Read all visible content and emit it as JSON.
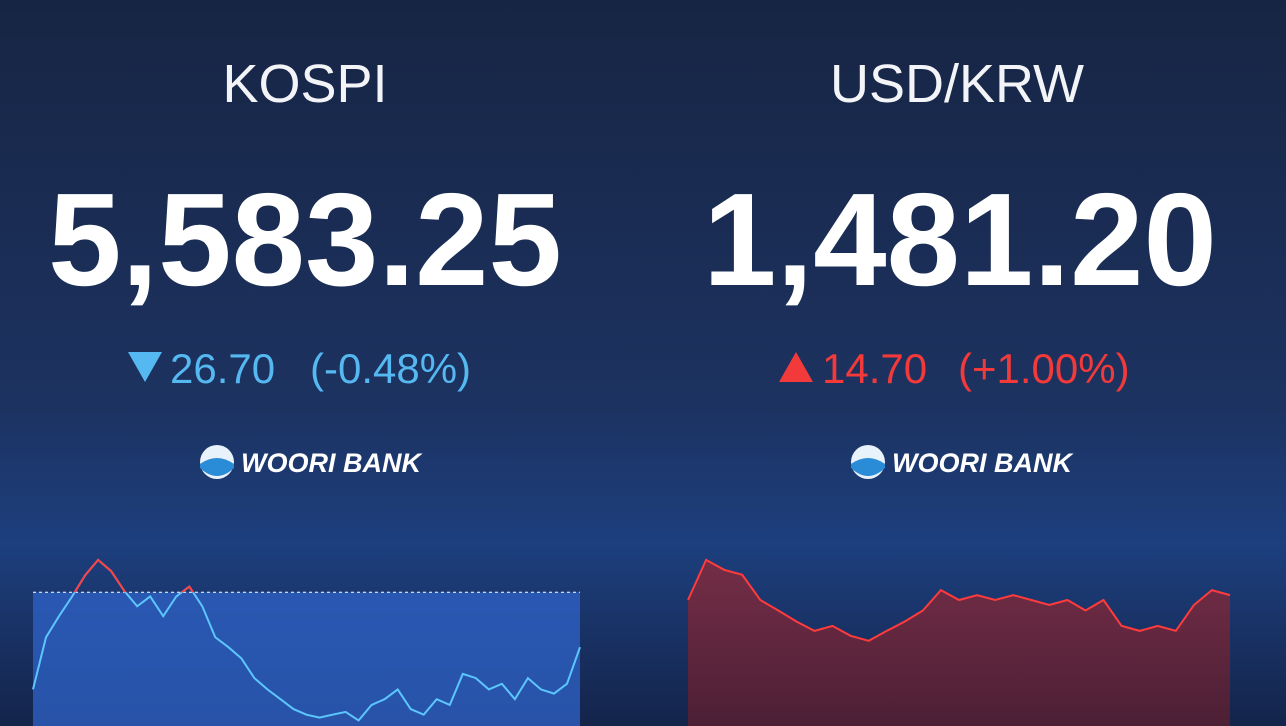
{
  "panels": [
    {
      "title": "KOSPI",
      "value": "5,583.25",
      "change": "26.70",
      "change_pct": "(-0.48%)",
      "direction": "down",
      "color": "#55b8f0",
      "logo": "WOORI BANK",
      "chart": {
        "values": [
          5541,
          5578,
          5593,
          5607,
          5622,
          5633,
          5625,
          5611,
          5600,
          5607,
          5593,
          5607,
          5614,
          5600,
          5578,
          5571,
          5563,
          5549,
          5541,
          5534,
          5527,
          5523,
          5521,
          5523,
          5525,
          5519,
          5530,
          5534,
          5541,
          5527,
          5523,
          5534,
          5530,
          5552,
          5549,
          5541,
          5545,
          5534,
          5549,
          5541,
          5538,
          5545,
          5571
        ],
        "ylim": [
          5515,
          5640
        ],
        "baseline": 5609.95,
        "color": "#5cc6ff"
      }
    },
    {
      "title": "USD/KRW",
      "value": "1,481.20",
      "change": "14.70",
      "change_pct": "(+1.00%)",
      "direction": "up",
      "color": "#f23a3a",
      "logo": "WOORI BANK",
      "chart": {
        "values": [
          1482.9,
          1490.2,
          1488.4,
          1487.5,
          1482.9,
          1481,
          1479,
          1477.3,
          1478.2,
          1476.4,
          1475.5,
          1477.3,
          1479,
          1481,
          1484.7,
          1482.9,
          1483.8,
          1482.9,
          1483.8,
          1482.9,
          1482,
          1482.9,
          1481,
          1482.9,
          1478.2,
          1477.3,
          1478.2,
          1477.3,
          1482,
          1484.7,
          1483.8
        ],
        "ylim": [
          1460,
          1492
        ],
        "color": "#ff3b3b"
      }
    }
  ]
}
